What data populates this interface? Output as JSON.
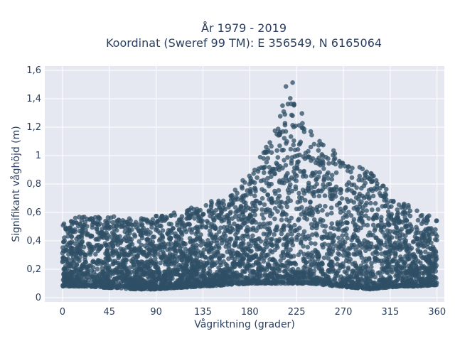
{
  "chart_data": {
    "type": "scatter",
    "title": "År 1979 - 2019",
    "subtitle": "Koordinat (Sweref 99 TM): E 356549, N 6165064",
    "xlabel": "Vågriktning (grader)",
    "ylabel": "Signifikant våghöjd (m)",
    "xlim": [
      -17,
      367
    ],
    "ylim": [
      -0.03,
      1.63
    ],
    "xticks": [
      0,
      45,
      90,
      135,
      180,
      225,
      270,
      315,
      360
    ],
    "xtick_labels": [
      "0",
      "45",
      "90",
      "135",
      "180",
      "225",
      "270",
      "315",
      "360"
    ],
    "yticks": [
      0,
      0.2,
      0.4,
      0.6,
      0.8,
      1.0,
      1.2,
      1.4,
      1.6
    ],
    "ytick_labels": [
      "0",
      "0,2",
      "0,4",
      "0,6",
      "0,8",
      "1",
      "1,2",
      "1,4",
      "1,6"
    ],
    "grid": true,
    "marker_color": "#2f4f66",
    "plot_bg": "#e5e8f0",
    "envelope": {
      "x": [
        0,
        20,
        45,
        70,
        90,
        110,
        135,
        160,
        180,
        195,
        205,
        215,
        220,
        225,
        232,
        240,
        250,
        265,
        280,
        295,
        310,
        325,
        340,
        360
      ],
      "y_min": [
        0.08,
        0.08,
        0.07,
        0.06,
        0.06,
        0.07,
        0.08,
        0.09,
        0.1,
        0.1,
        0.1,
        0.1,
        0.1,
        0.1,
        0.1,
        0.1,
        0.09,
        0.08,
        0.07,
        0.06,
        0.07,
        0.08,
        0.08,
        0.09
      ],
      "y_max": [
        0.53,
        0.58,
        0.58,
        0.55,
        0.58,
        0.6,
        0.66,
        0.72,
        0.88,
        1.05,
        1.2,
        1.5,
        1.55,
        1.48,
        1.3,
        1.18,
        1.1,
        1.02,
        0.95,
        0.9,
        0.78,
        0.68,
        0.62,
        0.55
      ]
    }
  }
}
